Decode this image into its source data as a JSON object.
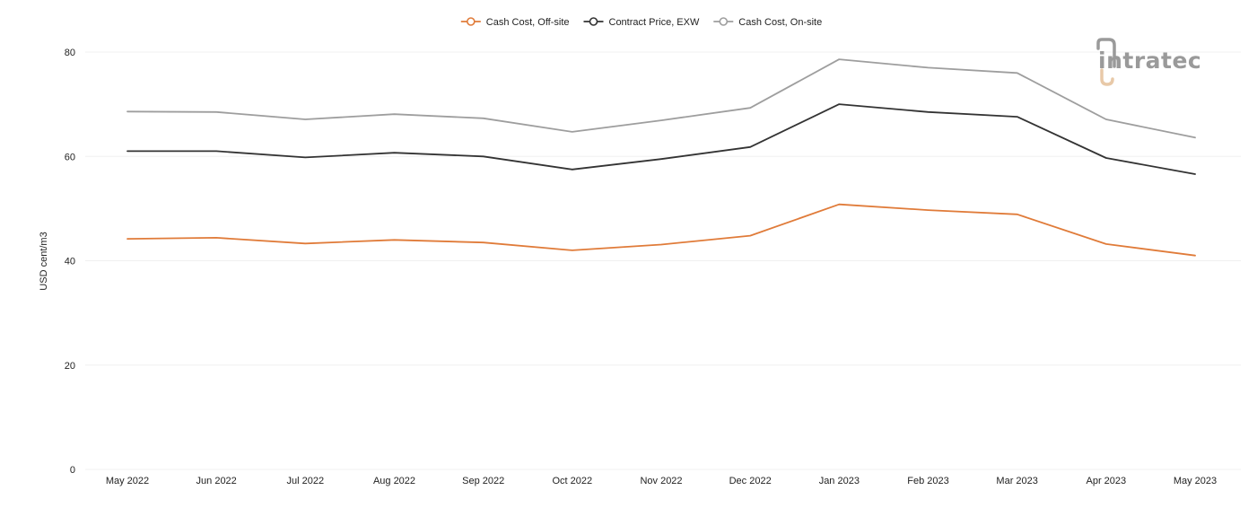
{
  "chart_data": {
    "type": "line",
    "title": "",
    "xlabel": "",
    "ylabel": "USD cent/m3",
    "ylim": [
      0,
      80
    ],
    "yticks": [
      0,
      20,
      40,
      60,
      80
    ],
    "grid": true,
    "legend_position": "top-center",
    "categories": [
      "May 2022",
      "Jun 2022",
      "Jul 2022",
      "Aug 2022",
      "Sep 2022",
      "Oct 2022",
      "Nov 2022",
      "Dec 2022",
      "Jan 2023",
      "Feb 2023",
      "Mar 2023",
      "Apr 2023",
      "May 2023"
    ],
    "series": [
      {
        "name": "Cash Cost, Off-site",
        "color": "#e07b39",
        "values": [
          44.2,
          44.4,
          43.3,
          44.0,
          43.5,
          42.0,
          43.1,
          44.8,
          50.8,
          49.7,
          48.9,
          43.2,
          41.0
        ]
      },
      {
        "name": "Contract Price, EXW",
        "color": "#333333",
        "values": [
          61.0,
          61.0,
          59.8,
          60.7,
          60.0,
          57.5,
          59.5,
          61.8,
          70.0,
          68.5,
          67.6,
          59.7,
          56.6
        ]
      },
      {
        "name": "Cash Cost, On-site",
        "color": "#9e9e9e",
        "values": [
          68.6,
          68.5,
          67.1,
          68.1,
          67.3,
          64.7,
          66.9,
          69.3,
          78.6,
          77.0,
          76.0,
          67.1,
          63.6
        ]
      }
    ]
  },
  "branding": {
    "logo_text": "intratec",
    "logo_color": "#9a9a9a",
    "logo_accent_color": "#e8c9a8"
  }
}
